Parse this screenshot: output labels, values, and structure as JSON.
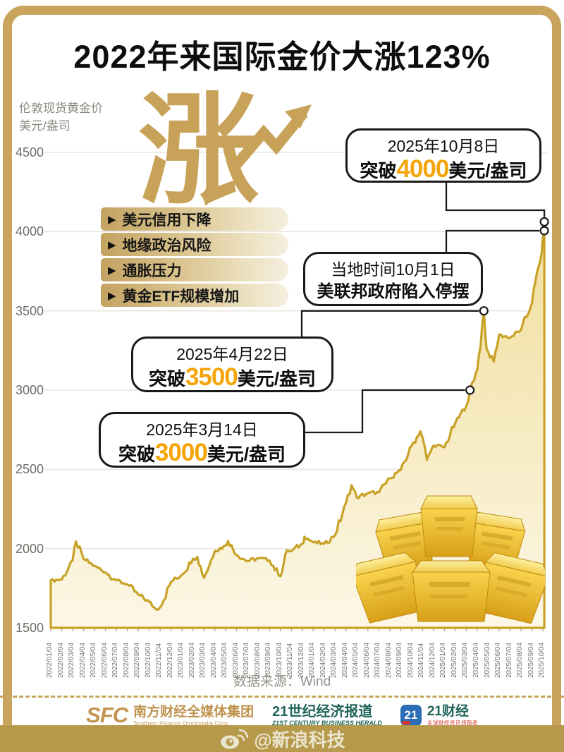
{
  "page": {
    "title": "2022年来国际金价大涨123%"
  },
  "axis": {
    "unit_line1": "伦敦现货黄金价",
    "unit_line2": "美元/盎司",
    "rise_char": "涨"
  },
  "reasons": [
    "美元信用下降",
    "地缘政治风险",
    "通胀压力",
    "黄金ETF规模增加"
  ],
  "callouts": {
    "c4000": {
      "date": "2025年10月8日",
      "prefix": "突破",
      "number": "4000",
      "suffix": "美元/盎司"
    },
    "shutdown": {
      "line1": "当地时间10月1日",
      "line2": "美联邦政府陷入停摆"
    },
    "c3500": {
      "date": "2025年4月22日",
      "prefix": "突破",
      "number": "3500",
      "suffix": "美元/盎司"
    },
    "c3000": {
      "date": "2025年3月14日",
      "prefix": "突破",
      "number": "3000",
      "suffix": "美元/盎司"
    }
  },
  "chart_data": {
    "type": "line",
    "title": "2022年来国际金价大涨123%",
    "ylabel": "伦敦现货黄金价（美元/盎司）",
    "ylim": [
      1500,
      4500
    ],
    "y_ticks": [
      4500,
      4000,
      3500,
      3000,
      2500,
      2000,
      1500
    ],
    "grid": true,
    "x_tick_labels": [
      "2022/01/04",
      "2022/02/04",
      "2022/03/04",
      "2022/04/04",
      "2022/05/04",
      "2022/06/04",
      "2022/07/04",
      "2022/08/04",
      "2022/09/04",
      "2022/10/04",
      "2022/11/04",
      "2022/12/04",
      "2023/01/04",
      "2023/02/04",
      "2023/03/04",
      "2023/04/04",
      "2023/05/04",
      "2023/06/04",
      "2023/07/04",
      "2023/08/04",
      "2023/09/04",
      "2023/10/04",
      "2023/11/04",
      "2023/12/04",
      "2024/01/04",
      "2024/02/04",
      "2024/03/04",
      "2024/04/04",
      "2024/05/04",
      "2024/06/04",
      "2024/07/04",
      "2024/08/04",
      "2024/09/04",
      "2024/10/04",
      "2024/11/04",
      "2024/12/04",
      "2025/01/04",
      "2025/02/04",
      "2025/03/04",
      "2025/04/04",
      "2025/05/04",
      "2025/06/04",
      "2025/07/04",
      "2025/08/04",
      "2025/09/04",
      "2025/10/04"
    ],
    "monthly_values": [
      1800,
      1805,
      1925,
      1935,
      1890,
      1850,
      1800,
      1775,
      1710,
      1665,
      1630,
      1790,
      1835,
      1935,
      1815,
      1985,
      2020,
      1960,
      1920,
      1940,
      1925,
      1825,
      1985,
      2030,
      2040,
      2030,
      2085,
      2290,
      2320,
      2350,
      2355,
      2445,
      2495,
      2650,
      2700,
      2650,
      2640,
      2795,
      2900,
      3130,
      3240,
      3350,
      3330,
      3380,
      3550,
      3960
    ],
    "extra_points": [
      {
        "m": 2.3,
        "v": 2045
      },
      {
        "m": 9.6,
        "v": 1618
      },
      {
        "m": 13.4,
        "v": 1948
      },
      {
        "m": 16.2,
        "v": 2048
      },
      {
        "m": 21.6,
        "v": 1990
      },
      {
        "m": 23.2,
        "v": 2075
      },
      {
        "m": 27.5,
        "v": 2400
      },
      {
        "m": 33.8,
        "v": 2740
      },
      {
        "m": 34.4,
        "v": 2560
      },
      {
        "m": 38.33,
        "v": 3000
      },
      {
        "m": 38.7,
        "v": 3060
      },
      {
        "m": 39.6,
        "v": 3500
      },
      {
        "m": 39.85,
        "v": 3260
      },
      {
        "m": 40.5,
        "v": 3180
      },
      {
        "m": 44.3,
        "v": 3680
      },
      {
        "m": 44.9,
        "v": 3870
      },
      {
        "m": 45.13,
        "v": 4040
      }
    ],
    "markers": [
      {
        "m": 38.33,
        "v": 3000,
        "label": "2025年3月14日 突破3000美元/盎司"
      },
      {
        "m": 39.6,
        "v": 3500,
        "label": "2025年4月22日 突破3500美元/盎司"
      },
      {
        "m": 45.13,
        "v": 4006,
        "label": "当地时间10月1日 美联邦政府陷入停摆"
      },
      {
        "m": 45.13,
        "v": 4062,
        "label": "2025年10月8日 突破4000美元/盎司"
      }
    ],
    "source": "数据来源：Wind"
  },
  "footer": {
    "source_label": "数据来源：",
    "source_value": "Wind",
    "sfc": {
      "logo": "SFC",
      "cn": "南方财经全媒体集团",
      "en": "Southern Finance Omnimedia Corp."
    },
    "herald": {
      "cn": "21世纪经济报道",
      "en": "21ST CENTURY BUSINESS HERALD"
    },
    "caijing": {
      "badge": "21",
      "cn": "21财经",
      "slogan": "全球财经资讯领跑者"
    },
    "weibo_handle": "@新浪科技"
  },
  "colors": {
    "frame_gold": "#C9A45C",
    "line_gold": "#C8A227",
    "fill_top": "#EFD98F",
    "fill_bottom": "#FCF7E6",
    "accent_orange": "#F5A50A",
    "rise_gold": "#C7A258",
    "herald_teal": "#20655A",
    "caijing_blue": "#2A6DB4",
    "slogan_red": "#D4372B",
    "weibo_band": "#B7994B"
  }
}
